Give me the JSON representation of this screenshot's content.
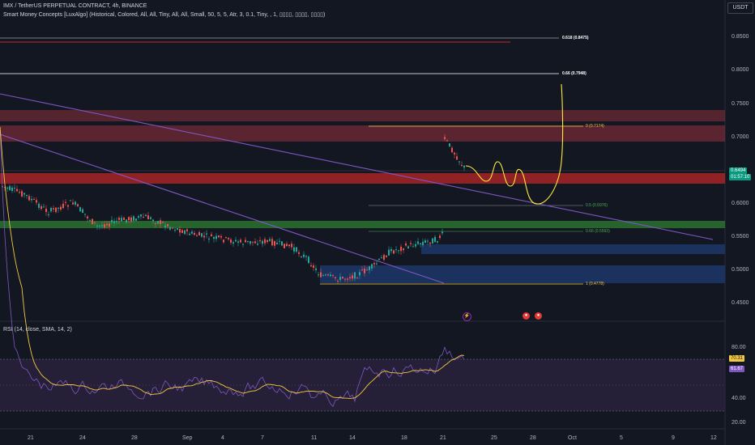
{
  "header": {
    "symbol_line": "IMX / TetherUS PERPETUAL CONTRACT, 4h, BINANCE",
    "indicator_line": "Smart Money Concepts [LuxAlgo] (Historical, Colored, All, All, Tiny, All, All, Small, 50, 5, 5, Atr, 3, 0.1, Tiny, , 1, ▯▯▯▯, ▯▯▯▯, ▯▯▯▯)"
  },
  "currency_button": "USDT",
  "price_axis": {
    "ticks": [
      "0.8500",
      "0.8000",
      "0.7500",
      "0.7000",
      "0.6500",
      "0.6000",
      "0.5500",
      "0.5000",
      "0.4500"
    ],
    "current_price": "0.6494",
    "countdown": "01:57:10",
    "current_price_color": "#089981"
  },
  "fib_levels": [
    {
      "label": "0.618 (0.8475)",
      "color": "#ffffff"
    },
    {
      "label": "0.66 (0.7948)",
      "color": "#ffffff"
    },
    {
      "label": "0 (0.7174)",
      "color": "#f5c842"
    },
    {
      "label": "0.5 (0.5976)",
      "color": "#4caf50"
    },
    {
      "label": "0.66 (0.5593)",
      "color": "#4caf50"
    },
    {
      "label": "1 (0.4778)",
      "color": "#f5c842"
    }
  ],
  "rsi": {
    "title": "RSI (14, close, SMA, 14, 2)",
    "ticks": [
      "80.00",
      "60.00",
      "40.00",
      "20.00"
    ],
    "rsi_value": "70.31",
    "sma_value": "61.67"
  },
  "time_axis": {
    "labels": [
      "21",
      "24",
      "28",
      "Sep",
      "4",
      "7",
      "11",
      "14",
      "18",
      "21",
      "25",
      "28",
      "Oct",
      "5",
      "9",
      "12"
    ]
  },
  "colors": {
    "background": "#131722",
    "supply_zone": "#8b2f3a",
    "demand_zone": "#2e7d32",
    "order_block_blue": "#1e3a6e",
    "trendline": "#7e57c2",
    "projection": "#ffeb3b",
    "rsi_line": "#7e57c2",
    "rsi_sma": "#f5c842"
  }
}
